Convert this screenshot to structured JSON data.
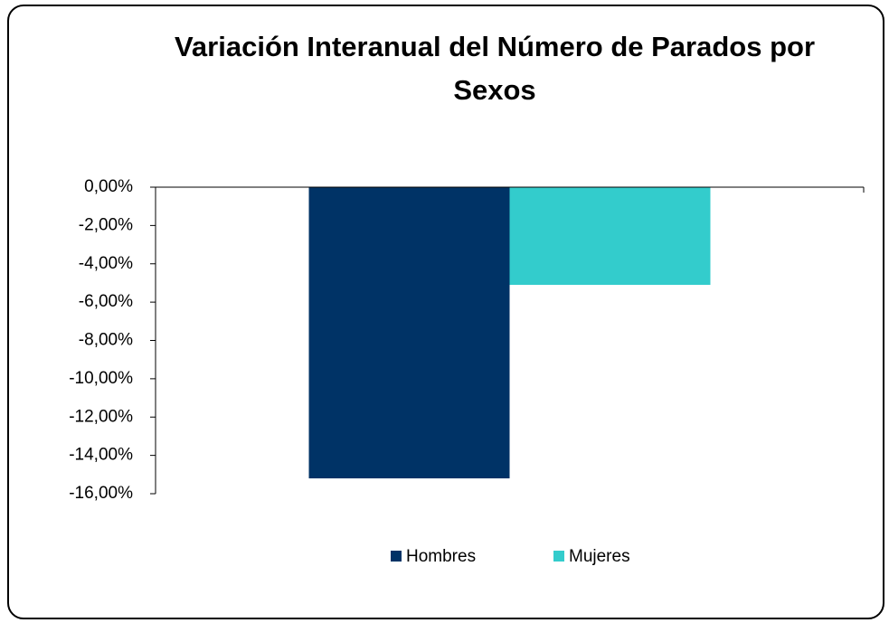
{
  "chart_data": {
    "type": "bar",
    "title": "Variación Interanual del Número de Parados por Sexos",
    "categories": [
      null
    ],
    "series": [
      {
        "name": "Hombres",
        "color": "#003366",
        "values": [
          -15.2
        ]
      },
      {
        "name": "Mujeres",
        "color": "#33CCCC",
        "values": [
          -5.1
        ]
      }
    ],
    "ylim": [
      -16,
      0
    ],
    "yticks": [
      {
        "value": 0,
        "label": "0,00%"
      },
      {
        "value": -2,
        "label": "-2,00%"
      },
      {
        "value": -4,
        "label": "-4,00%"
      },
      {
        "value": -6,
        "label": "-6,00%"
      },
      {
        "value": -8,
        "label": "-8,00%"
      },
      {
        "value": -10,
        "label": "-10,00%"
      },
      {
        "value": -12,
        "label": "-12,00%"
      },
      {
        "value": -14,
        "label": "-14,00%"
      },
      {
        "value": -16,
        "label": "-16,00%"
      }
    ],
    "grid": false,
    "legend": "bottom"
  }
}
